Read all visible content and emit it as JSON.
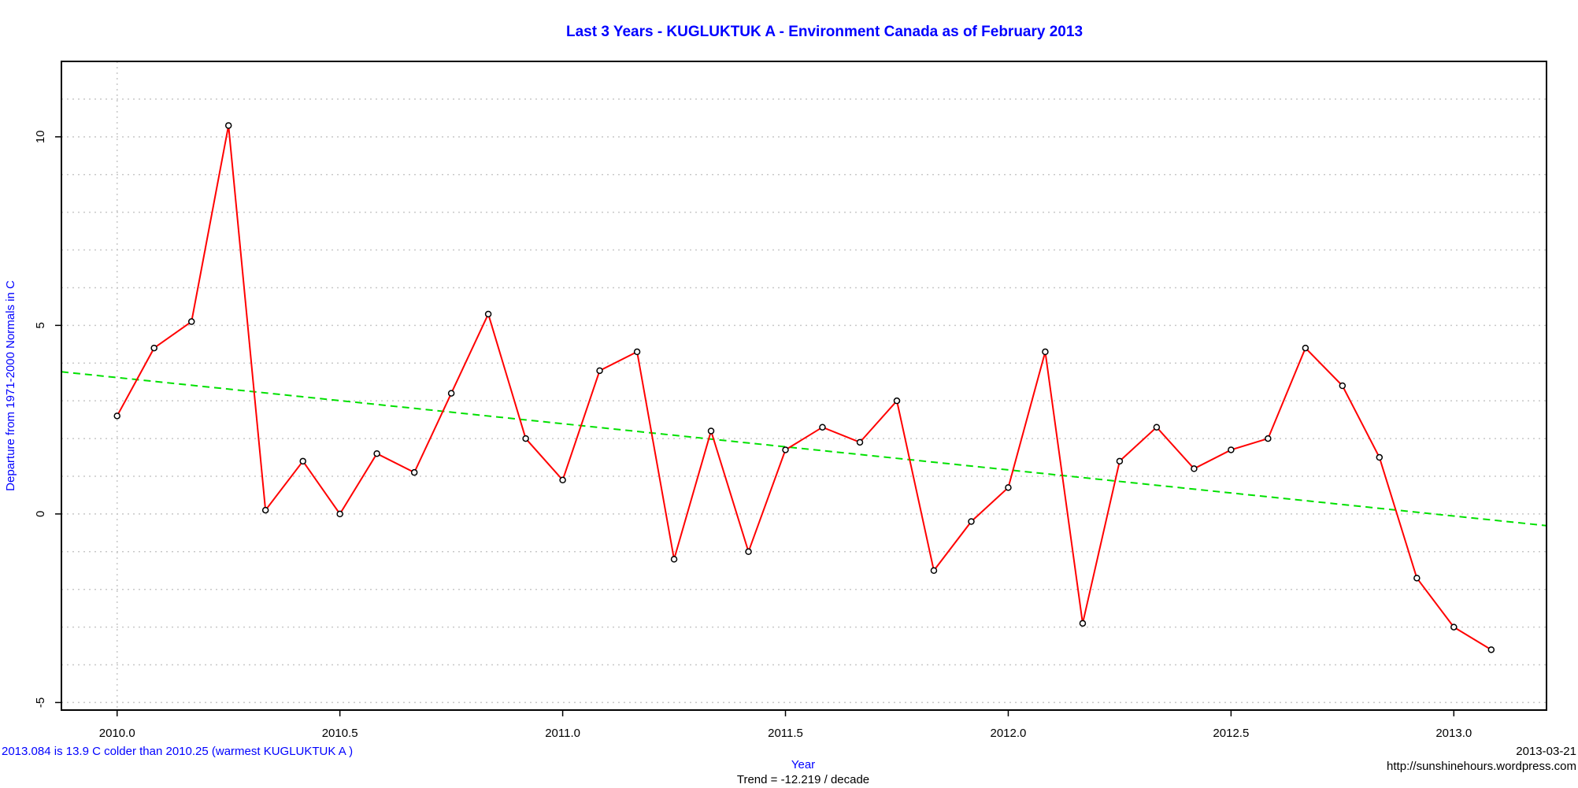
{
  "chart_data": {
    "type": "line",
    "title": "Last 3 Years - KUGLUKTUK A - Environment Canada as of  February 2013",
    "xlabel": "Year",
    "ylabel": "Departure from 1971-2000 Normals in C",
    "xlim": [
      2009.875,
      2013.208
    ],
    "ylim": [
      -5.2,
      12.0
    ],
    "x_ticks": [
      2010.0,
      2010.5,
      2011.0,
      2011.5,
      2012.0,
      2012.5,
      2013.0
    ],
    "x_tick_labels": [
      "2010.0",
      "2010.5",
      "2011.0",
      "2011.5",
      "2012.0",
      "2012.5",
      "2013.0"
    ],
    "y_ticks": [
      -5,
      0,
      5,
      10
    ],
    "y_tick_labels": [
      "-5",
      "0",
      "5",
      "10"
    ],
    "grid": true,
    "grid_y_step": 1,
    "grid_x_at": [
      2010.0
    ],
    "series": [
      {
        "color": "#ff0000",
        "x": [
          2010.0,
          2010.083,
          2010.167,
          2010.25,
          2010.333,
          2010.417,
          2010.5,
          2010.583,
          2010.667,
          2010.75,
          2010.833,
          2010.917,
          2011.0,
          2011.083,
          2011.167,
          2011.25,
          2011.333,
          2011.417,
          2011.5,
          2011.583,
          2011.667,
          2011.75,
          2011.833,
          2011.917,
          2012.0,
          2012.083,
          2012.167,
          2012.25,
          2012.333,
          2012.417,
          2012.5,
          2012.583,
          2012.667,
          2012.75,
          2012.833,
          2012.917,
          2013.0,
          2013.084
        ],
        "values": [
          2.6,
          4.4,
          5.1,
          10.3,
          0.1,
          1.4,
          0.0,
          1.6,
          1.1,
          3.2,
          5.3,
          2.0,
          0.9,
          3.8,
          4.3,
          -1.2,
          2.2,
          -1.0,
          1.7,
          2.3,
          1.9,
          3.0,
          -1.5,
          -0.2,
          0.7,
          4.3,
          -2.9,
          1.4,
          2.3,
          1.2,
          1.7,
          2.0,
          4.4,
          3.4,
          1.5,
          -1.7,
          -3.0,
          -3.6
        ]
      }
    ],
    "trend": {
      "color": "#00e000",
      "style": "dashed",
      "x": [
        2009.875,
        2013.208
      ],
      "values": [
        3.77,
        -0.31
      ]
    },
    "annotations": {
      "bottom_left": "2013.084 is 13.9 C  colder than 2010.25 (warmest KUGLUKTUK A )",
      "trend_text": "Trend = -12.219 / decade",
      "date": "2013-03-21",
      "source": "http://sunshinehours.wordpress.com"
    }
  }
}
